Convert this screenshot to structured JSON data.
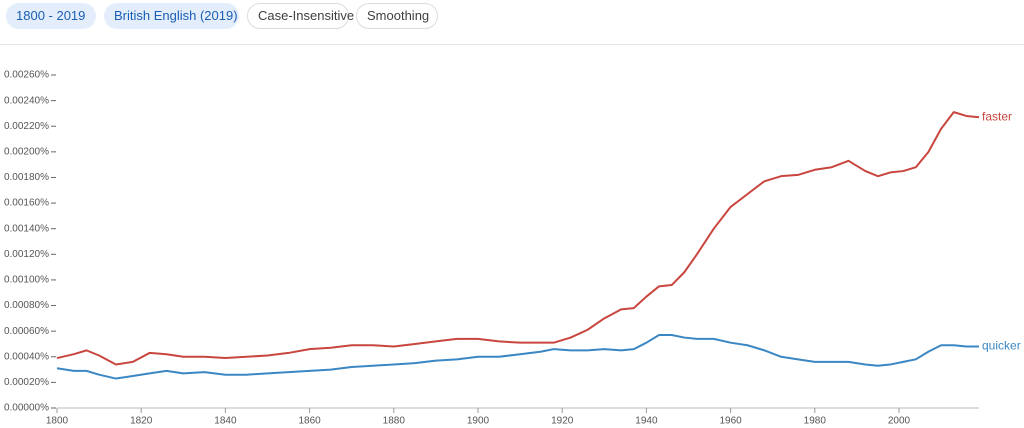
{
  "controls": {
    "range": "1800 - 2019",
    "corpus": "British English (2019)",
    "case": "Case-Insensitive",
    "smoothing": "Smoothing"
  },
  "chart_data": {
    "type": "line",
    "x": [
      1800,
      1804,
      1807,
      1810,
      1814,
      1818,
      1822,
      1826,
      1830,
      1835,
      1840,
      1845,
      1850,
      1855,
      1860,
      1865,
      1870,
      1875,
      1880,
      1885,
      1890,
      1895,
      1900,
      1905,
      1910,
      1915,
      1918,
      1922,
      1926,
      1930,
      1934,
      1937,
      1940,
      1943,
      1946,
      1949,
      1952,
      1956,
      1960,
      1964,
      1968,
      1972,
      1976,
      1980,
      1984,
      1988,
      1992,
      1995,
      1998,
      2001,
      2004,
      2007,
      2010,
      2013,
      2016,
      2019
    ],
    "series": [
      {
        "name": "faster",
        "color": "#c9463f",
        "values": [
          0.00039,
          0.00042,
          0.00045,
          0.00041,
          0.00034,
          0.00036,
          0.00043,
          0.00042,
          0.0004,
          0.0004,
          0.00039,
          0.0004,
          0.00041,
          0.00043,
          0.00046,
          0.00047,
          0.00049,
          0.00049,
          0.00048,
          0.0005,
          0.00052,
          0.00054,
          0.00054,
          0.00052,
          0.00051,
          0.00051,
          0.00051,
          0.00055,
          0.00061,
          0.0007,
          0.00077,
          0.00078,
          0.00087,
          0.00095,
          0.00096,
          0.00106,
          0.0012,
          0.0014,
          0.00157,
          0.00167,
          0.00177,
          0.00181,
          0.00182,
          0.00186,
          0.00188,
          0.00193,
          0.00185,
          0.00181,
          0.00184,
          0.00185,
          0.00188,
          0.002,
          0.00218,
          0.00231,
          0.00228,
          0.00227
        ]
      },
      {
        "name": "quicker",
        "color": "#3b87c4",
        "values": [
          0.00031,
          0.00029,
          0.00029,
          0.00026,
          0.00023,
          0.00025,
          0.00027,
          0.00029,
          0.00027,
          0.00028,
          0.00026,
          0.00026,
          0.00027,
          0.00028,
          0.00029,
          0.0003,
          0.00032,
          0.00033,
          0.00034,
          0.00035,
          0.00037,
          0.00038,
          0.0004,
          0.0004,
          0.00042,
          0.00044,
          0.00046,
          0.00045,
          0.00045,
          0.00046,
          0.00045,
          0.00046,
          0.00051,
          0.00057,
          0.00057,
          0.00055,
          0.00054,
          0.00054,
          0.00051,
          0.00049,
          0.00045,
          0.0004,
          0.00038,
          0.00036,
          0.00036,
          0.00036,
          0.00034,
          0.00033,
          0.00034,
          0.00036,
          0.00038,
          0.00044,
          0.00049,
          0.00049,
          0.00048,
          0.00048
        ]
      }
    ],
    "xlim": [
      1800,
      2019
    ],
    "xticks": [
      1800,
      1820,
      1840,
      1860,
      1880,
      1900,
      1920,
      1940,
      1960,
      1980,
      2000
    ],
    "ylim": [
      0,
      0.0026
    ],
    "yticks": [
      {
        "value": 0,
        "label": "0.00000%"
      },
      {
        "value": 0.0002,
        "label": "0.00020%"
      },
      {
        "value": 0.0004,
        "label": "0.00040%"
      },
      {
        "value": 0.0006,
        "label": "0.00060%"
      },
      {
        "value": 0.0008,
        "label": "0.00080%"
      },
      {
        "value": 0.001,
        "label": "0.00100%"
      },
      {
        "value": 0.0012,
        "label": "0.00120%"
      },
      {
        "value": 0.0014,
        "label": "0.00140%"
      },
      {
        "value": 0.0016,
        "label": "0.00160%"
      },
      {
        "value": 0.0018,
        "label": "0.00180%"
      },
      {
        "value": 0.002,
        "label": "0.00200%"
      },
      {
        "value": 0.0022,
        "label": "0.00220%"
      },
      {
        "value": 0.0024,
        "label": "0.00240%"
      },
      {
        "value": 0.0026,
        "label": "0.00260%"
      }
    ],
    "grid": false
  }
}
